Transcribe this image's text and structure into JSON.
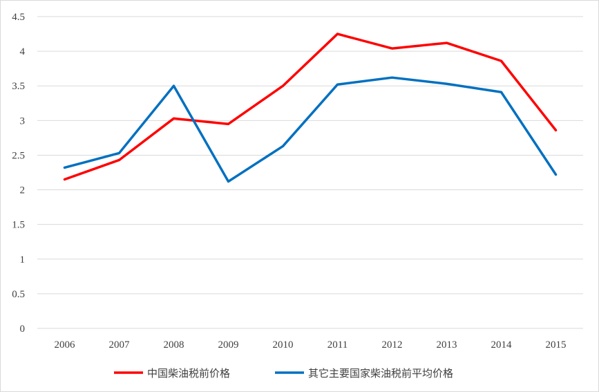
{
  "chart_data": {
    "type": "line",
    "categories": [
      "2006",
      "2007",
      "2008",
      "2009",
      "2010",
      "2011",
      "2012",
      "2013",
      "2014",
      "2015"
    ],
    "ylim": [
      0,
      4.5
    ],
    "yticks": [
      "0",
      "0.5",
      "1",
      "1.5",
      "2",
      "2.5",
      "3",
      "3.5",
      "4",
      "4.5"
    ],
    "grid": true,
    "legend_position": "bottom",
    "series": [
      {
        "name": "中国柴油税前价格",
        "color": "#ff0000",
        "values": [
          2.15,
          2.43,
          3.03,
          2.95,
          3.5,
          4.25,
          4.04,
          4.12,
          3.86,
          2.86
        ]
      },
      {
        "name": "其它主要国家柴油税前平均价格",
        "color": "#0070c0",
        "values": [
          2.32,
          2.53,
          3.5,
          2.12,
          2.63,
          3.52,
          3.62,
          3.53,
          3.41,
          2.22
        ]
      }
    ]
  }
}
